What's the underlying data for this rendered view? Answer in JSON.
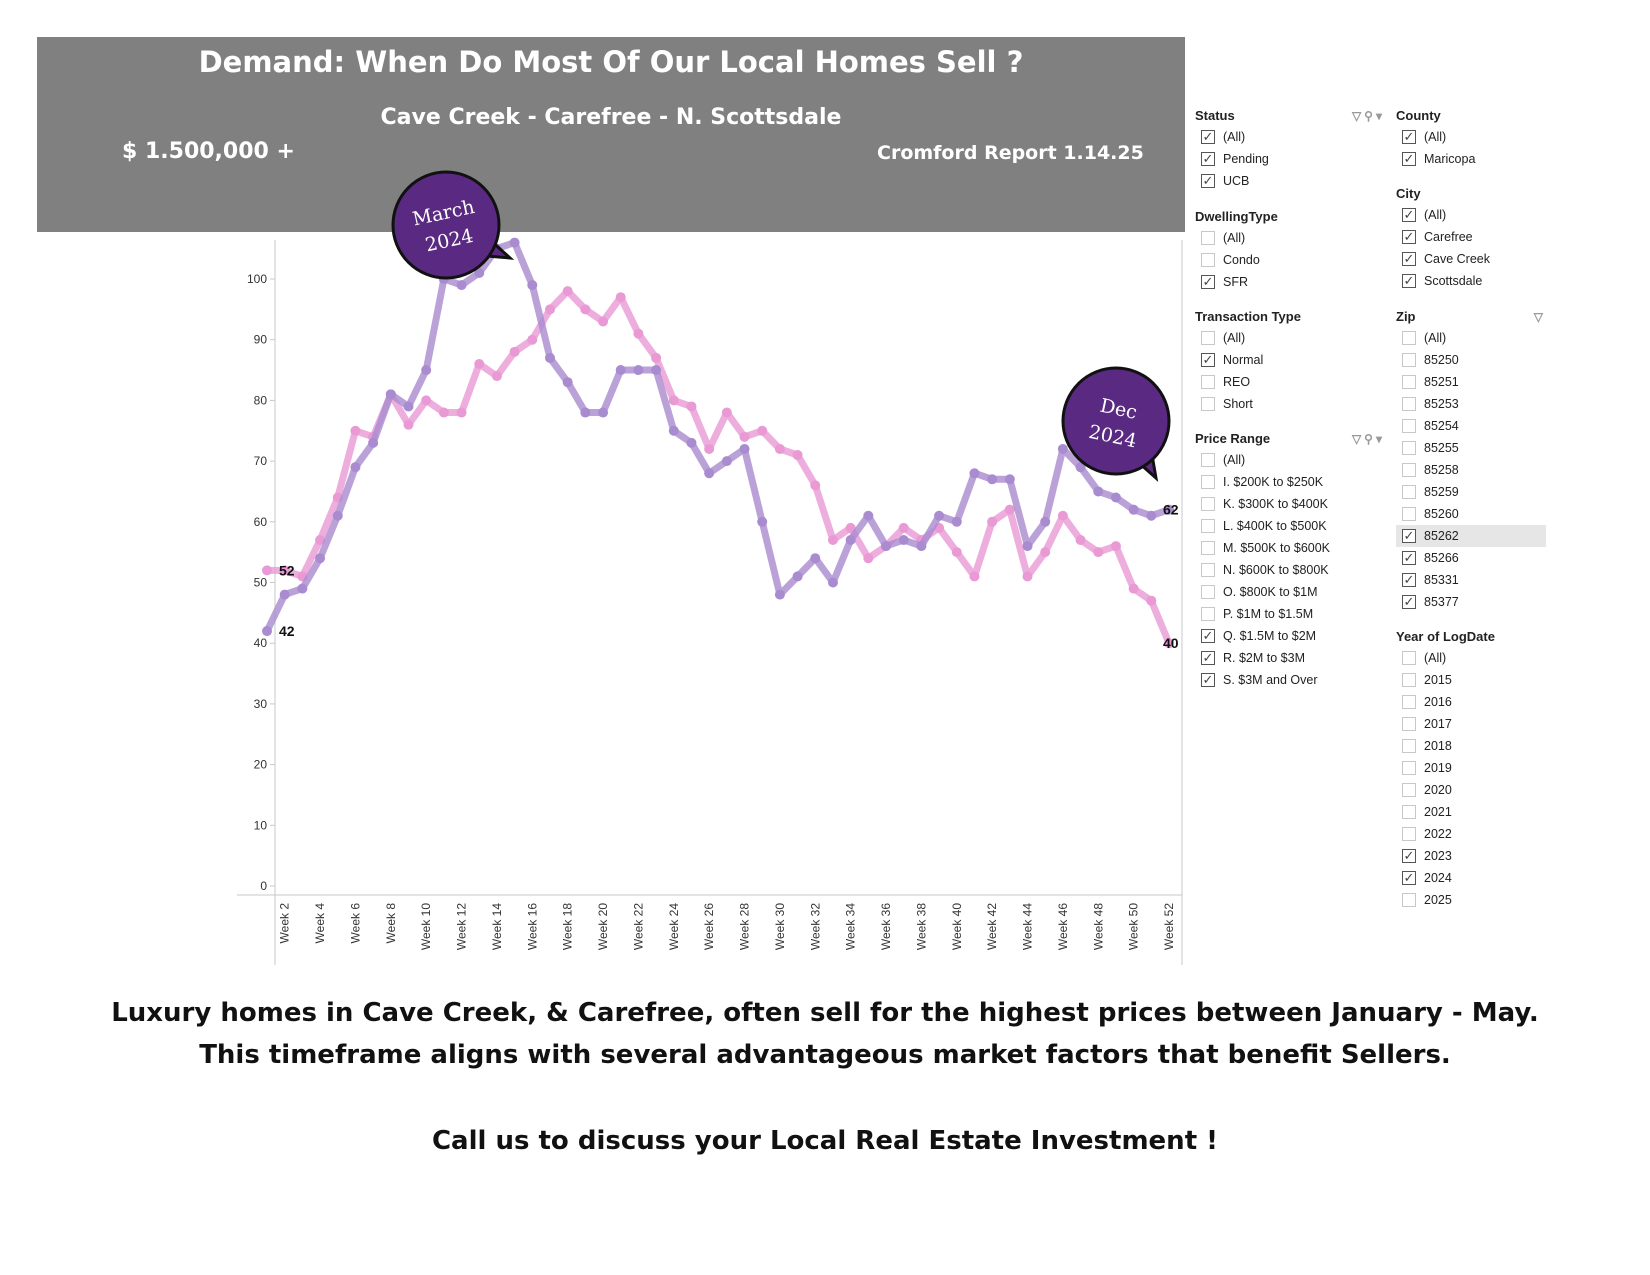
{
  "header": {
    "title": "Demand:  When Do Most Of Our Local Homes Sell ?",
    "subtitle": "Cave Creek - Carefree - N. Scottsdale",
    "price": "$ 1.500,000 +",
    "report": "Cromford Report 1.14.25"
  },
  "callouts": [
    {
      "line1": "March",
      "line2": "2024"
    },
    {
      "line1": "Dec",
      "line2": "2024"
    }
  ],
  "colors": {
    "series_2023": "#e99ad4",
    "series_2024": "#a98bcf",
    "callout": "#5a2a82",
    "banner": "#808080"
  },
  "chart_data": {
    "type": "line",
    "ylim": [
      0,
      108
    ],
    "yticks": [
      0,
      10,
      20,
      30,
      40,
      50,
      60,
      70,
      80,
      90,
      100
    ],
    "x": [
      "Week 1",
      "Week 2",
      "Week 3",
      "Week 4",
      "Week 5",
      "Week 6",
      "Week 7",
      "Week 8",
      "Week 9",
      "Week 10",
      "Week 11",
      "Week 12",
      "Week 13",
      "Week 14",
      "Week 15",
      "Week 16",
      "Week 17",
      "Week 18",
      "Week 19",
      "Week 20",
      "Week 21",
      "Week 22",
      "Week 23",
      "Week 24",
      "Week 25",
      "Week 26",
      "Week 27",
      "Week 28",
      "Week 29",
      "Week 30",
      "Week 31",
      "Week 32",
      "Week 33",
      "Week 34",
      "Week 35",
      "Week 36",
      "Week 37",
      "Week 38",
      "Week 39",
      "Week 40",
      "Week 41",
      "Week 42",
      "Week 43",
      "Week 44",
      "Week 45",
      "Week 46",
      "Week 47",
      "Week 48",
      "Week 49",
      "Week 50",
      "Week 51",
      "Week 52"
    ],
    "xtick_labels": [
      "Week 2",
      "Week 4",
      "Week 6",
      "Week 8",
      "Week 10",
      "Week 12",
      "Week 14",
      "Week 16",
      "Week 18",
      "Week 20",
      "Week 22",
      "Week 24",
      "Week 26",
      "Week 28",
      "Week 30",
      "Week 32",
      "Week 34",
      "Week 36",
      "Week 38",
      "Week 40",
      "Week 42",
      "Week 44",
      "Week 46",
      "Week 48",
      "Week 50",
      "Week 52"
    ],
    "series": [
      {
        "name": "2023",
        "color": "#e99ad4",
        "values": [
          52,
          52,
          51,
          57,
          64,
          75,
          74,
          81,
          76,
          80,
          78,
          78,
          86,
          84,
          88,
          90,
          95,
          98,
          95,
          93,
          97,
          91,
          87,
          80,
          79,
          72,
          78,
          74,
          75,
          72,
          71,
          66,
          57,
          59,
          54,
          56,
          59,
          57,
          59,
          55,
          51,
          60,
          62,
          51,
          55,
          61,
          57,
          55,
          56,
          49,
          47,
          40
        ]
      },
      {
        "name": "2024",
        "color": "#a98bcf",
        "values": [
          42,
          48,
          49,
          54,
          61,
          69,
          73,
          81,
          79,
          85,
          100,
          99,
          101,
          105,
          106,
          99,
          87,
          83,
          78,
          78,
          85,
          85,
          85,
          75,
          73,
          68,
          70,
          72,
          60,
          48,
          51,
          54,
          50,
          57,
          61,
          56,
          57,
          56,
          61,
          60,
          68,
          67,
          67,
          56,
          60,
          72,
          69,
          65,
          64,
          62,
          61,
          62
        ]
      }
    ],
    "data_labels": [
      {
        "text": "52",
        "series": "2023",
        "point": "first"
      },
      {
        "text": "42",
        "series": "2024",
        "point": "first"
      },
      {
        "text": "62",
        "series": "2024",
        "point": "last"
      },
      {
        "text": "40",
        "series": "2023",
        "point": "last"
      }
    ],
    "grid": false
  },
  "filters": {
    "status": {
      "title": "Status",
      "items": [
        {
          "label": "(All)",
          "checked": true
        },
        {
          "label": "Pending",
          "checked": true
        },
        {
          "label": "UCB",
          "checked": true
        }
      ]
    },
    "dwelling": {
      "title": "DwellingType",
      "items": [
        {
          "label": "(All)",
          "checked": false
        },
        {
          "label": "Condo",
          "checked": false
        },
        {
          "label": "SFR",
          "checked": true
        }
      ]
    },
    "transaction": {
      "title": "Transaction Type",
      "items": [
        {
          "label": "(All)",
          "checked": false
        },
        {
          "label": "Normal",
          "checked": true
        },
        {
          "label": "REO",
          "checked": false
        },
        {
          "label": "Short",
          "checked": false
        }
      ]
    },
    "price": {
      "title": "Price Range",
      "items": [
        {
          "label": "(All)",
          "checked": false
        },
        {
          "label": "I. $200K to $250K",
          "checked": false
        },
        {
          "label": "K. $300K to $400K",
          "checked": false
        },
        {
          "label": "L. $400K to $500K",
          "checked": false
        },
        {
          "label": "M. $500K to $600K",
          "checked": false
        },
        {
          "label": "N. $600K to $800K",
          "checked": false
        },
        {
          "label": "O. $800K to $1M",
          "checked": false
        },
        {
          "label": "P. $1M to $1.5M",
          "checked": false
        },
        {
          "label": "Q. $1.5M to $2M",
          "checked": true
        },
        {
          "label": "R. $2M to $3M",
          "checked": true
        },
        {
          "label": "S. $3M and Over",
          "checked": true
        }
      ]
    },
    "county": {
      "title": "County",
      "items": [
        {
          "label": "(All)",
          "checked": true
        },
        {
          "label": "Maricopa",
          "checked": true
        }
      ]
    },
    "city": {
      "title": "City",
      "items": [
        {
          "label": "(All)",
          "checked": true
        },
        {
          "label": "Carefree",
          "checked": true
        },
        {
          "label": "Cave Creek",
          "checked": true
        },
        {
          "label": "Scottsdale",
          "checked": true
        }
      ]
    },
    "zip": {
      "title": "Zip",
      "items": [
        {
          "label": "(All)",
          "checked": false
        },
        {
          "label": "85250",
          "checked": false
        },
        {
          "label": "85251",
          "checked": false
        },
        {
          "label": "85253",
          "checked": false
        },
        {
          "label": "85254",
          "checked": false
        },
        {
          "label": "85255",
          "checked": false
        },
        {
          "label": "85258",
          "checked": false
        },
        {
          "label": "85259",
          "checked": false
        },
        {
          "label": "85260",
          "checked": false
        },
        {
          "label": "85262",
          "checked": true,
          "highlight": true
        },
        {
          "label": "85266",
          "checked": true
        },
        {
          "label": "85331",
          "checked": true
        },
        {
          "label": "85377",
          "checked": true
        }
      ]
    },
    "year": {
      "title": "Year of LogDate",
      "items": [
        {
          "label": "(All)",
          "checked": false
        },
        {
          "label": "2015",
          "checked": false
        },
        {
          "label": "2016",
          "checked": false
        },
        {
          "label": "2017",
          "checked": false
        },
        {
          "label": "2018",
          "checked": false
        },
        {
          "label": "2019",
          "checked": false
        },
        {
          "label": "2020",
          "checked": false
        },
        {
          "label": "2021",
          "checked": false
        },
        {
          "label": "2022",
          "checked": false
        },
        {
          "label": "2023",
          "checked": true
        },
        {
          "label": "2024",
          "checked": true
        },
        {
          "label": "2025",
          "checked": false
        }
      ]
    }
  },
  "captions": {
    "line1": "Luxury homes in Cave Creek, & Carefree, often sell for the highest prices between January - May.",
    "line2": "This timeframe aligns with several advantageous market factors that benefit Sellers.",
    "line3": "Call us to discuss your Local Real Estate Investment !"
  }
}
